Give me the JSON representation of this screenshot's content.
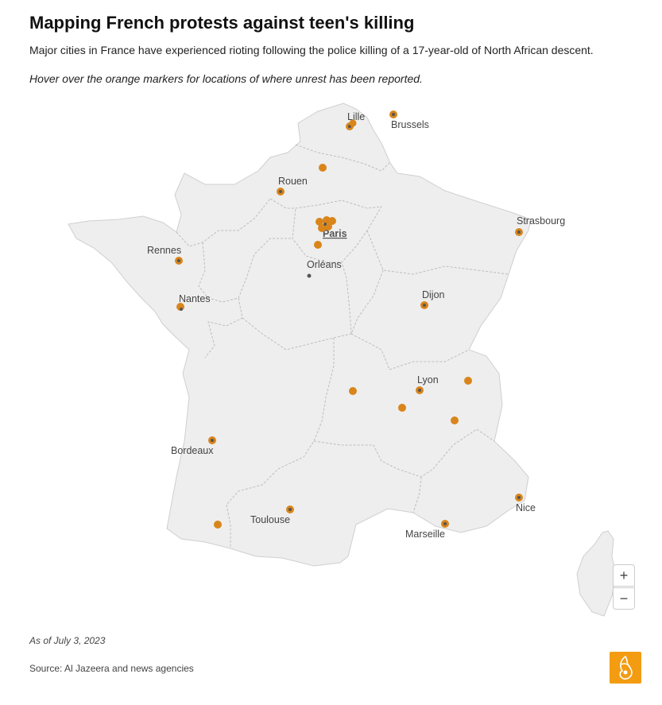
{
  "header": {
    "title": "Mapping French protests against teen's killing",
    "subtitle": "Major cities in France have experienced rioting following the police killing of a 17-year-old of North African descent.",
    "hint": "Hover over the orange markers for locations of where unrest has been reported."
  },
  "map": {
    "colors": {
      "land": "#eeeeee",
      "border": "#bdbdbd",
      "marker": "#d9851b",
      "city_dot": "#555555"
    },
    "cities": [
      {
        "name": "Lille",
        "marked": true
      },
      {
        "name": "Brussels",
        "marked": true
      },
      {
        "name": "Rouen",
        "marked": true
      },
      {
        "name": "Paris",
        "marked": true
      },
      {
        "name": "Strasbourg",
        "marked": true
      },
      {
        "name": "Rennes",
        "marked": true
      },
      {
        "name": "Orléans",
        "marked": false
      },
      {
        "name": "Nantes",
        "marked": true
      },
      {
        "name": "Dijon",
        "marked": true
      },
      {
        "name": "Lyon",
        "marked": true
      },
      {
        "name": "Bordeaux",
        "marked": true
      },
      {
        "name": "Toulouse",
        "marked": true
      },
      {
        "name": "Marseille",
        "marked": true
      },
      {
        "name": "Nice",
        "marked": true
      }
    ],
    "unlabeled_protest_markers": 13,
    "zoom_in_label": "+",
    "zoom_out_label": "−"
  },
  "footer": {
    "as_of": "As of July 3, 2023",
    "source": "Source: Al Jazeera and news agencies",
    "logo_icon": "al-jazeera-logo-icon"
  }
}
